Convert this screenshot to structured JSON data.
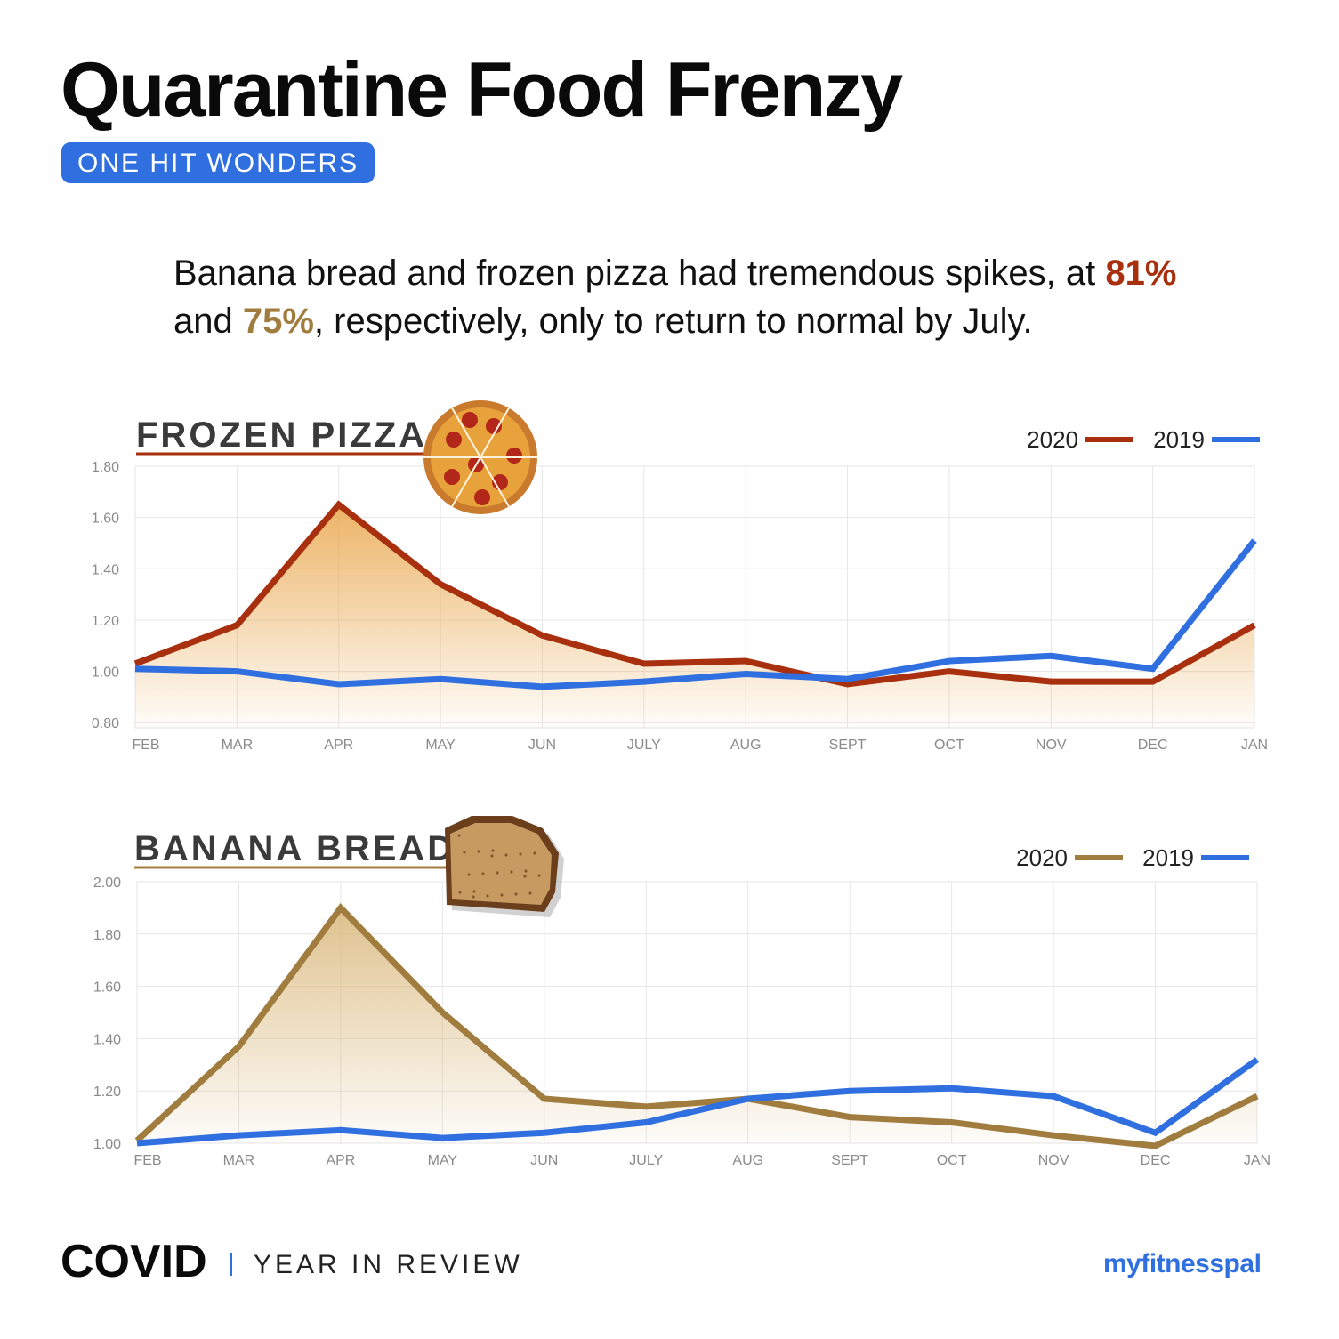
{
  "header": {
    "title": "Quarantine Food Frenzy",
    "badge": "ONE HIT WONDERS"
  },
  "lede": {
    "part1": "Banana bread and frozen pizza had tremendous spikes, at ",
    "pct1": "81%",
    "part2": " and ",
    "pct2": "75%",
    "part3": ", respectively, only to return to normal by July."
  },
  "colors": {
    "pizza_2020": "#a8300f",
    "bread_2020": "#a07d3e",
    "series_2019": "#2f6fe0",
    "accent": "#2f6fe0"
  },
  "icons": {
    "pizza": "pizza-icon",
    "bread": "banana-bread-icon"
  },
  "chart_data": [
    {
      "type": "line",
      "title": "FROZEN PIZZA",
      "categories": [
        "FEB",
        "MAR",
        "APR",
        "MAY",
        "JUN",
        "JULY",
        "AUG",
        "SEPT",
        "OCT",
        "NOV",
        "DEC",
        "JAN"
      ],
      "series": [
        {
          "name": "2020",
          "values": [
            1.03,
            1.18,
            1.65,
            1.34,
            1.14,
            1.03,
            1.04,
            0.95,
            1.0,
            0.96,
            0.96,
            1.18
          ]
        },
        {
          "name": "2019",
          "values": [
            1.01,
            1.0,
            0.95,
            0.97,
            0.94,
            0.96,
            0.99,
            0.97,
            1.04,
            1.06,
            1.01,
            1.51
          ]
        }
      ],
      "yticks": [
        "1.80",
        "1.60",
        "1.40",
        "1.20",
        "1.00",
        "0.80"
      ],
      "ylim": [
        0.78,
        1.8
      ],
      "grid": true,
      "legend": "top-right"
    },
    {
      "type": "line",
      "title": "BANANA BREAD",
      "categories": [
        "FEB",
        "MAR",
        "APR",
        "MAY",
        "JUN",
        "JULY",
        "AUG",
        "SEPT",
        "OCT",
        "NOV",
        "DEC",
        "JAN"
      ],
      "series": [
        {
          "name": "2020",
          "values": [
            1.01,
            1.37,
            1.9,
            1.5,
            1.17,
            1.14,
            1.17,
            1.1,
            1.08,
            1.03,
            0.99,
            1.18
          ]
        },
        {
          "name": "2019",
          "values": [
            1.0,
            1.03,
            1.05,
            1.02,
            1.04,
            1.08,
            1.17,
            1.2,
            1.21,
            1.18,
            1.04,
            1.32
          ]
        }
      ],
      "yticks": [
        "2.00",
        "1.80",
        "1.60",
        "1.40",
        "1.20",
        "1.00"
      ],
      "ylim": [
        1.0,
        2.0
      ],
      "grid": true,
      "legend": "top-right"
    }
  ],
  "footer": {
    "covid": "COVID",
    "subtitle": "YEAR IN REVIEW",
    "brand": "myfitnesspal"
  }
}
